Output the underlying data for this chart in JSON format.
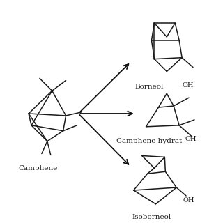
{
  "background_color": "#ffffff",
  "text_color": "#1a1a1a",
  "arrow_color": "#111111",
  "labels": {
    "camphene": "Camphene",
    "borneol": "Borneol",
    "camphene_hydrate": "Camphene hydrat",
    "isoborneol": "Isoborneol",
    "oh": "OH"
  },
  "figsize": [
    3.2,
    3.2
  ],
  "dpi": 100
}
